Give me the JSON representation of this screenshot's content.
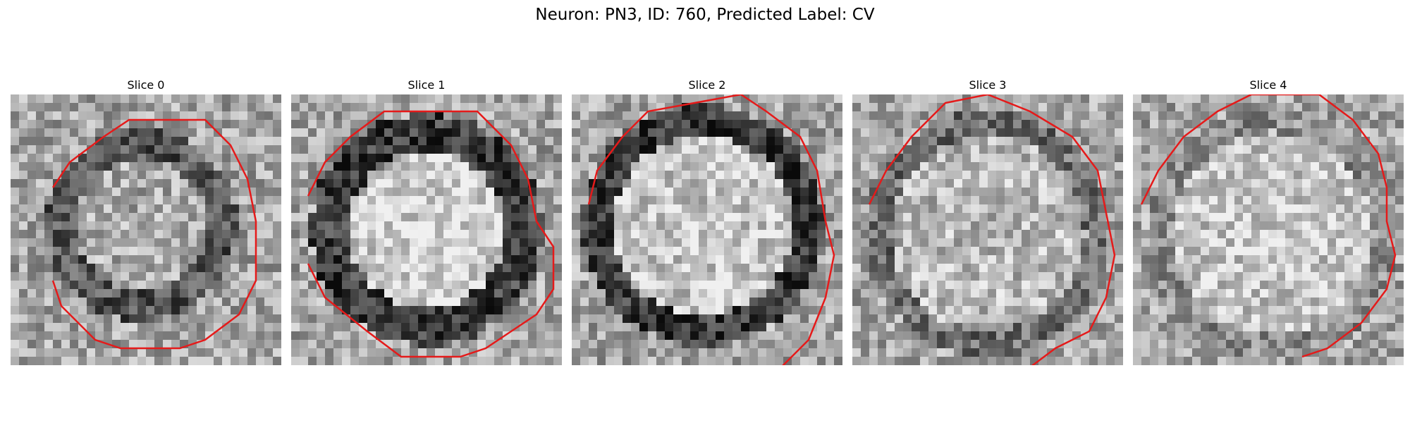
{
  "figure": {
    "title": "Neuron: PN3, ID: 760, Predicted Label: CV",
    "contour_color": "#e51a1a"
  },
  "panels": [
    {
      "title": "Slice 0"
    },
    {
      "title": "Slice 1"
    },
    {
      "title": "Slice 2"
    },
    {
      "title": "Slice 3"
    },
    {
      "title": "Slice 4"
    }
  ]
}
